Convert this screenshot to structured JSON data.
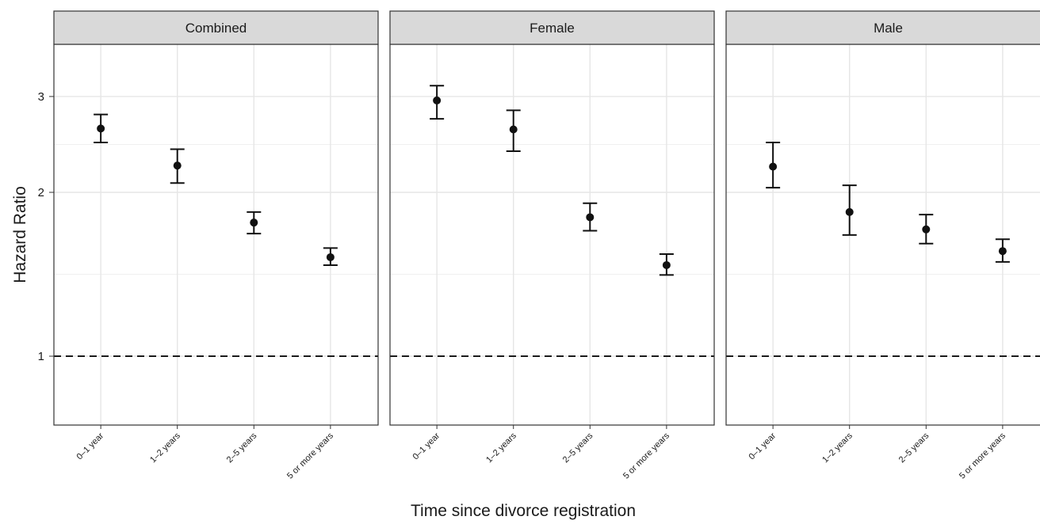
{
  "chart_data": {
    "type": "scatter",
    "subtype": "point estimates with error bars, faceted",
    "xlabel": "Time since divorce registration",
    "ylabel": "Hazard Ratio",
    "y_scale": "log",
    "y_ticks": [
      1,
      2,
      3
    ],
    "ylim": [
      0.75,
      3.6
    ],
    "reference_line": {
      "y": 1,
      "style": "dashed"
    },
    "grid": true,
    "categories": [
      "0–1 year",
      "1–2 years",
      "2–5 years",
      "5 or more years"
    ],
    "facets": [
      {
        "name": "Combined",
        "points": [
          {
            "category": "0–1 year",
            "value": 2.62,
            "lower": 2.47,
            "upper": 2.78
          },
          {
            "category": "1–2 years",
            "value": 2.24,
            "lower": 2.08,
            "upper": 2.4
          },
          {
            "category": "2–5 years",
            "value": 1.76,
            "lower": 1.68,
            "upper": 1.84
          },
          {
            "category": "5 or more years",
            "value": 1.52,
            "lower": 1.47,
            "upper": 1.58
          }
        ]
      },
      {
        "name": "Female",
        "points": [
          {
            "category": "0–1 year",
            "value": 2.95,
            "lower": 2.73,
            "upper": 3.14
          },
          {
            "category": "1–2 years",
            "value": 2.61,
            "lower": 2.38,
            "upper": 2.83
          },
          {
            "category": "2–5 years",
            "value": 1.8,
            "lower": 1.7,
            "upper": 1.91
          },
          {
            "category": "5 or more years",
            "value": 1.47,
            "lower": 1.41,
            "upper": 1.54
          }
        ]
      },
      {
        "name": "Male",
        "points": [
          {
            "category": "0–1 year",
            "value": 2.23,
            "lower": 2.04,
            "upper": 2.47
          },
          {
            "category": "1–2 years",
            "value": 1.84,
            "lower": 1.67,
            "upper": 2.06
          },
          {
            "category": "2–5 years",
            "value": 1.71,
            "lower": 1.61,
            "upper": 1.82
          },
          {
            "category": "5 or more years",
            "value": 1.56,
            "lower": 1.49,
            "upper": 1.64
          }
        ]
      }
    ]
  }
}
